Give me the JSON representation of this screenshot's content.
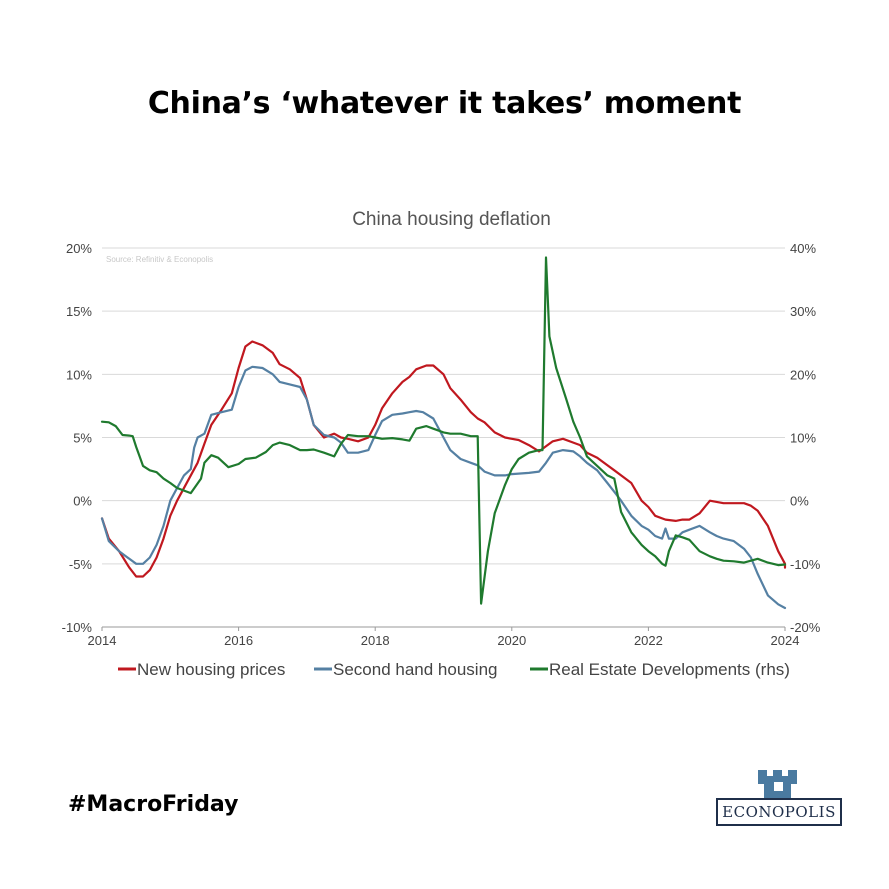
{
  "headline": "China’s ‘whatever it takes’ moment",
  "hashtag": "#MacroFriday",
  "brand": {
    "name": "ECONOPOLIS",
    "color": "#4a7aa0",
    "icon": "castle-tower-icon"
  },
  "chart_data": {
    "type": "line",
    "title": "China housing deflation",
    "source": "Source: Refinitiv  & Econopolis",
    "x_ticks": [
      "2014",
      "2016",
      "2018",
      "2020",
      "2022",
      "2024"
    ],
    "xlim": [
      2014,
      2024
    ],
    "y_left": {
      "ticks": [
        "20%",
        "15%",
        "10%",
        "5%",
        "0%",
        "-5%",
        "-10%"
      ],
      "ylim": [
        -10,
        20
      ]
    },
    "y_right": {
      "ticks": [
        "40%",
        "30%",
        "20%",
        "10%",
        "0%",
        "-10%",
        "-20%"
      ],
      "ylim": [
        -20,
        40
      ]
    },
    "grid": true,
    "legend_position": "bottom",
    "series": [
      {
        "name": "New housing prices",
        "axis": "left",
        "color": "#c0181f",
        "points": [
          [
            2014.0,
            -1.4
          ],
          [
            2014.1,
            -3.0
          ],
          [
            2014.25,
            -4.0
          ],
          [
            2014.4,
            -5.3
          ],
          [
            2014.5,
            -6.0
          ],
          [
            2014.6,
            -6.0
          ],
          [
            2014.7,
            -5.5
          ],
          [
            2014.8,
            -4.5
          ],
          [
            2014.9,
            -3.0
          ],
          [
            2015.0,
            -1.2
          ],
          [
            2015.1,
            0.0
          ],
          [
            2015.25,
            1.5
          ],
          [
            2015.4,
            3.0
          ],
          [
            2015.5,
            4.5
          ],
          [
            2015.6,
            6.0
          ],
          [
            2015.75,
            7.2
          ],
          [
            2015.9,
            8.5
          ],
          [
            2016.0,
            10.5
          ],
          [
            2016.1,
            12.2
          ],
          [
            2016.2,
            12.6
          ],
          [
            2016.35,
            12.3
          ],
          [
            2016.5,
            11.7
          ],
          [
            2016.6,
            10.8
          ],
          [
            2016.75,
            10.4
          ],
          [
            2016.9,
            9.7
          ],
          [
            2017.0,
            8.0
          ],
          [
            2017.1,
            6.0
          ],
          [
            2017.25,
            5.0
          ],
          [
            2017.4,
            5.3
          ],
          [
            2017.5,
            5.0
          ],
          [
            2017.6,
            4.9
          ],
          [
            2017.75,
            4.7
          ],
          [
            2017.9,
            5.0
          ],
          [
            2018.0,
            6.0
          ],
          [
            2018.1,
            7.3
          ],
          [
            2018.25,
            8.5
          ],
          [
            2018.4,
            9.4
          ],
          [
            2018.5,
            9.8
          ],
          [
            2018.6,
            10.4
          ],
          [
            2018.75,
            10.7
          ],
          [
            2018.85,
            10.7
          ],
          [
            2019.0,
            10.0
          ],
          [
            2019.1,
            8.9
          ],
          [
            2019.25,
            8.0
          ],
          [
            2019.4,
            7.0
          ],
          [
            2019.5,
            6.5
          ],
          [
            2019.6,
            6.2
          ],
          [
            2019.75,
            5.4
          ],
          [
            2019.9,
            5.0
          ],
          [
            2020.0,
            4.9
          ],
          [
            2020.1,
            4.8
          ],
          [
            2020.25,
            4.4
          ],
          [
            2020.4,
            3.9
          ],
          [
            2020.5,
            4.3
          ],
          [
            2020.6,
            4.7
          ],
          [
            2020.75,
            4.9
          ],
          [
            2020.9,
            4.6
          ],
          [
            2021.0,
            4.4
          ],
          [
            2021.1,
            3.8
          ],
          [
            2021.25,
            3.4
          ],
          [
            2021.4,
            2.8
          ],
          [
            2021.5,
            2.4
          ],
          [
            2021.6,
            2.0
          ],
          [
            2021.75,
            1.4
          ],
          [
            2021.9,
            0.0
          ],
          [
            2022.0,
            -0.5
          ],
          [
            2022.1,
            -1.2
          ],
          [
            2022.25,
            -1.5
          ],
          [
            2022.4,
            -1.6
          ],
          [
            2022.5,
            -1.5
          ],
          [
            2022.6,
            -1.5
          ],
          [
            2022.75,
            -1.0
          ],
          [
            2022.9,
            0.0
          ],
          [
            2023.0,
            -0.1
          ],
          [
            2023.1,
            -0.2
          ],
          [
            2023.25,
            -0.2
          ],
          [
            2023.4,
            -0.2
          ],
          [
            2023.5,
            -0.4
          ],
          [
            2023.6,
            -0.8
          ],
          [
            2023.75,
            -2.0
          ],
          [
            2023.9,
            -4.0
          ],
          [
            2024.0,
            -5.0
          ],
          [
            2024.0,
            -5.3
          ]
        ]
      },
      {
        "name": "Second hand housing",
        "axis": "left",
        "color": "#5580a3",
        "points": [
          [
            2014.0,
            -1.4
          ],
          [
            2014.1,
            -3.2
          ],
          [
            2014.25,
            -4.0
          ],
          [
            2014.4,
            -4.6
          ],
          [
            2014.5,
            -5.0
          ],
          [
            2014.6,
            -5.0
          ],
          [
            2014.7,
            -4.5
          ],
          [
            2014.8,
            -3.5
          ],
          [
            2014.9,
            -2.0
          ],
          [
            2015.0,
            0.0
          ],
          [
            2015.1,
            1.0
          ],
          [
            2015.2,
            2.0
          ],
          [
            2015.3,
            2.5
          ],
          [
            2015.35,
            4.2
          ],
          [
            2015.4,
            5.0
          ],
          [
            2015.5,
            5.3
          ],
          [
            2015.6,
            6.8
          ],
          [
            2015.75,
            7.0
          ],
          [
            2015.9,
            7.2
          ],
          [
            2016.0,
            9.0
          ],
          [
            2016.1,
            10.3
          ],
          [
            2016.2,
            10.6
          ],
          [
            2016.35,
            10.5
          ],
          [
            2016.5,
            10.0
          ],
          [
            2016.6,
            9.4
          ],
          [
            2016.75,
            9.2
          ],
          [
            2016.9,
            9.0
          ],
          [
            2017.0,
            8.0
          ],
          [
            2017.1,
            6.0
          ],
          [
            2017.25,
            5.2
          ],
          [
            2017.4,
            5.0
          ],
          [
            2017.5,
            4.6
          ],
          [
            2017.6,
            3.8
          ],
          [
            2017.75,
            3.8
          ],
          [
            2017.9,
            4.0
          ],
          [
            2018.0,
            5.2
          ],
          [
            2018.1,
            6.3
          ],
          [
            2018.25,
            6.8
          ],
          [
            2018.4,
            6.9
          ],
          [
            2018.5,
            7.0
          ],
          [
            2018.6,
            7.1
          ],
          [
            2018.7,
            7.0
          ],
          [
            2018.85,
            6.5
          ],
          [
            2019.0,
            5.0
          ],
          [
            2019.1,
            4.0
          ],
          [
            2019.25,
            3.3
          ],
          [
            2019.4,
            3.0
          ],
          [
            2019.5,
            2.8
          ],
          [
            2019.6,
            2.3
          ],
          [
            2019.75,
            2.0
          ],
          [
            2019.9,
            2.0
          ],
          [
            2020.0,
            2.1
          ],
          [
            2020.25,
            2.2
          ],
          [
            2020.4,
            2.3
          ],
          [
            2020.5,
            3.0
          ],
          [
            2020.6,
            3.8
          ],
          [
            2020.75,
            4.0
          ],
          [
            2020.9,
            3.9
          ],
          [
            2021.0,
            3.5
          ],
          [
            2021.1,
            3.0
          ],
          [
            2021.25,
            2.4
          ],
          [
            2021.4,
            1.4
          ],
          [
            2021.5,
            0.7
          ],
          [
            2021.6,
            0.0
          ],
          [
            2021.75,
            -1.2
          ],
          [
            2021.9,
            -2.0
          ],
          [
            2022.0,
            -2.3
          ],
          [
            2022.1,
            -2.8
          ],
          [
            2022.2,
            -3.0
          ],
          [
            2022.25,
            -2.2
          ],
          [
            2022.3,
            -3.0
          ],
          [
            2022.4,
            -3.0
          ],
          [
            2022.5,
            -2.5
          ],
          [
            2022.6,
            -2.3
          ],
          [
            2022.75,
            -2.0
          ],
          [
            2022.9,
            -2.5
          ],
          [
            2023.0,
            -2.8
          ],
          [
            2023.1,
            -3.0
          ],
          [
            2023.25,
            -3.2
          ],
          [
            2023.4,
            -3.8
          ],
          [
            2023.5,
            -4.5
          ],
          [
            2023.6,
            -5.8
          ],
          [
            2023.75,
            -7.5
          ],
          [
            2023.9,
            -8.2
          ],
          [
            2024.0,
            -8.5
          ]
        ]
      },
      {
        "name": "Real Estate Developments (rhs)",
        "axis": "right",
        "color": "#1f7a2e",
        "points": [
          [
            2014.0,
            12.5
          ],
          [
            2014.1,
            12.4
          ],
          [
            2014.2,
            11.8
          ],
          [
            2014.3,
            10.4
          ],
          [
            2014.4,
            10.3
          ],
          [
            2014.45,
            10.2
          ],
          [
            2014.5,
            8.5
          ],
          [
            2014.55,
            7.0
          ],
          [
            2014.6,
            5.5
          ],
          [
            2014.7,
            4.8
          ],
          [
            2014.8,
            4.5
          ],
          [
            2014.9,
            3.5
          ],
          [
            2015.0,
            2.8
          ],
          [
            2015.1,
            2.0
          ],
          [
            2015.2,
            1.6
          ],
          [
            2015.3,
            1.2
          ],
          [
            2015.45,
            3.5
          ],
          [
            2015.5,
            6.0
          ],
          [
            2015.6,
            7.2
          ],
          [
            2015.7,
            6.8
          ],
          [
            2015.85,
            5.3
          ],
          [
            2016.0,
            5.8
          ],
          [
            2016.1,
            6.6
          ],
          [
            2016.25,
            6.8
          ],
          [
            2016.4,
            7.7
          ],
          [
            2016.5,
            8.8
          ],
          [
            2016.6,
            9.2
          ],
          [
            2016.75,
            8.8
          ],
          [
            2016.9,
            8.0
          ],
          [
            2017.0,
            8.0
          ],
          [
            2017.1,
            8.1
          ],
          [
            2017.25,
            7.6
          ],
          [
            2017.4,
            7.0
          ],
          [
            2017.5,
            9.0
          ],
          [
            2017.6,
            10.4
          ],
          [
            2017.75,
            10.2
          ],
          [
            2017.9,
            10.2
          ],
          [
            2018.0,
            10.0
          ],
          [
            2018.1,
            9.8
          ],
          [
            2018.25,
            9.9
          ],
          [
            2018.4,
            9.7
          ],
          [
            2018.5,
            9.5
          ],
          [
            2018.6,
            11.4
          ],
          [
            2018.75,
            11.8
          ],
          [
            2018.85,
            11.4
          ],
          [
            2019.0,
            10.8
          ],
          [
            2019.1,
            10.6
          ],
          [
            2019.25,
            10.6
          ],
          [
            2019.4,
            10.2
          ],
          [
            2019.5,
            10.2
          ],
          [
            2019.55,
            -16.3
          ],
          [
            2019.65,
            -8.0
          ],
          [
            2019.75,
            -2.0
          ],
          [
            2019.9,
            2.5
          ],
          [
            2020.0,
            5.0
          ],
          [
            2020.1,
            6.6
          ],
          [
            2020.25,
            7.6
          ],
          [
            2020.4,
            8.0
          ],
          [
            2020.45,
            8.0
          ],
          [
            2020.5,
            38.5
          ],
          [
            2020.55,
            26.0
          ],
          [
            2020.65,
            21.0
          ],
          [
            2020.8,
            16.0
          ],
          [
            2020.9,
            12.5
          ],
          [
            2021.0,
            10.0
          ],
          [
            2021.1,
            7.0
          ],
          [
            2021.25,
            5.5
          ],
          [
            2021.4,
            4.0
          ],
          [
            2021.5,
            3.5
          ],
          [
            2021.6,
            -1.8
          ],
          [
            2021.75,
            -5.0
          ],
          [
            2021.9,
            -7.0
          ],
          [
            2022.0,
            -8.0
          ],
          [
            2022.1,
            -8.8
          ],
          [
            2022.2,
            -10.0
          ],
          [
            2022.25,
            -10.3
          ],
          [
            2022.3,
            -8.0
          ],
          [
            2022.4,
            -5.5
          ],
          [
            2022.5,
            -5.8
          ],
          [
            2022.6,
            -6.2
          ],
          [
            2022.75,
            -8.0
          ],
          [
            2022.9,
            -8.8
          ],
          [
            2023.0,
            -9.2
          ],
          [
            2023.1,
            -9.5
          ],
          [
            2023.25,
            -9.6
          ],
          [
            2023.4,
            -9.8
          ],
          [
            2023.5,
            -9.5
          ],
          [
            2023.6,
            -9.2
          ],
          [
            2023.75,
            -9.8
          ],
          [
            2023.9,
            -10.2
          ],
          [
            2024.0,
            -10.1
          ]
        ]
      }
    ]
  }
}
